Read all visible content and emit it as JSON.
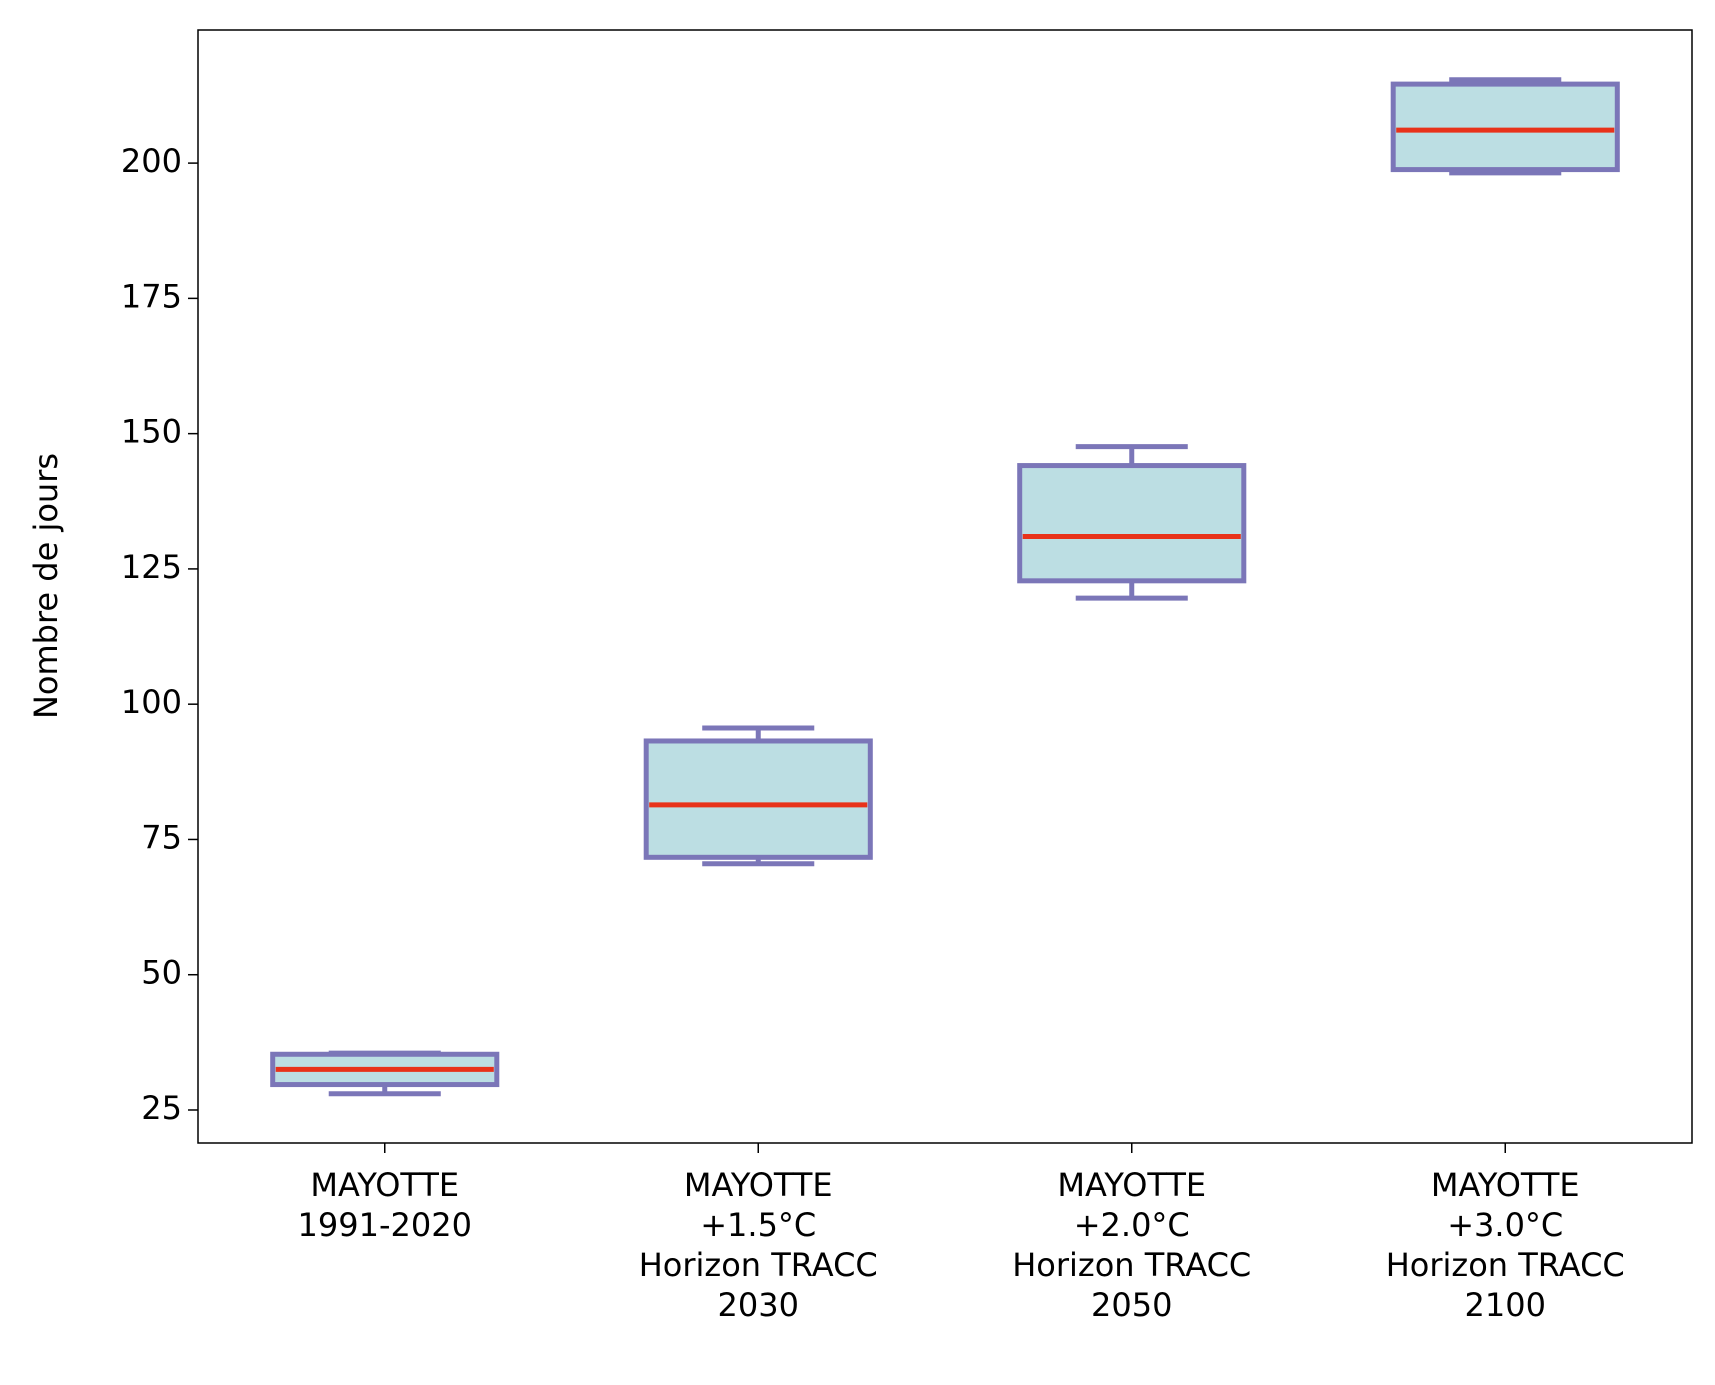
{
  "chart_data": {
    "type": "box",
    "y_label": "Nombre de jours",
    "categories": [
      "MAYOTTE\n1991-2020",
      "MAYOTTE\n+1.5°C\nHorizon TRACC\n2030",
      "MAYOTTE\n+2.0°C\nHorizon TRACC\n2050",
      "MAYOTTE\n+3.0°C\nHorizon TRACC\n2100"
    ],
    "boxes": [
      {
        "whislo": 28,
        "q1": 29.7,
        "med": 32.5,
        "q3": 35.3,
        "whishi": 35.5
      },
      {
        "whislo": 70.5,
        "q1": 71.7,
        "med": 81.4,
        "q3": 93.2,
        "whishi": 95.6
      },
      {
        "whislo": 119.6,
        "q1": 122.8,
        "med": 131,
        "q3": 144.1,
        "whishi": 147.6
      },
      {
        "whislo": 198.2,
        "q1": 198.8,
        "med": 206.1,
        "q3": 214.6,
        "whishi": 215.4
      }
    ],
    "box_color": "#bcdee3",
    "edge_color": "#7b76b8",
    "median_color": "#e8321a",
    "ylim": [
      18.9,
      224.6
    ],
    "yticks": [
      25,
      50,
      75,
      100,
      125,
      150,
      175,
      200
    ]
  }
}
